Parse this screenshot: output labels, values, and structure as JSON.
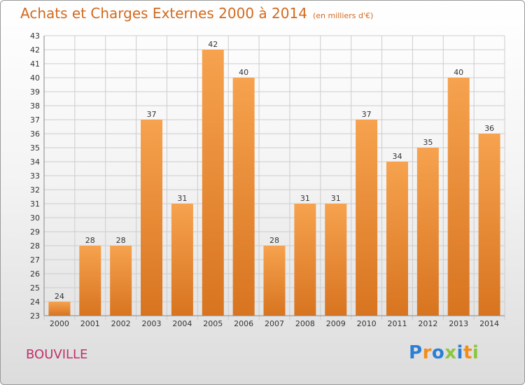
{
  "chart_data": {
    "type": "bar",
    "title": "Achats et Charges Externes 2000 à 2014",
    "subtitle": "(en milliers d'€)",
    "categories": [
      "2000",
      "2001",
      "2002",
      "2003",
      "2004",
      "2005",
      "2006",
      "2007",
      "2008",
      "2009",
      "2010",
      "2011",
      "2012",
      "2013",
      "2014"
    ],
    "values": [
      24,
      28,
      28,
      37,
      31,
      42,
      40,
      28,
      31,
      31,
      37,
      34,
      35,
      40,
      36
    ],
    "ylim": [
      23,
      43
    ],
    "yticks": [
      23,
      24,
      25,
      26,
      27,
      28,
      29,
      30,
      31,
      32,
      33,
      34,
      35,
      36,
      37,
      38,
      39,
      40,
      41,
      42,
      43
    ],
    "grid": true,
    "bar_color": "#e8862e",
    "grid_color": "#cccccc"
  },
  "location": "BOUVILLE",
  "logo": {
    "letters": [
      "P",
      "r",
      "o",
      "x",
      "i",
      "t",
      "i"
    ],
    "colors": [
      "#2a7fd4",
      "#f28c1a",
      "#2a7fd4",
      "#8cc63f",
      "#2a7fd4",
      "#f28c1a",
      "#8cc63f"
    ]
  }
}
